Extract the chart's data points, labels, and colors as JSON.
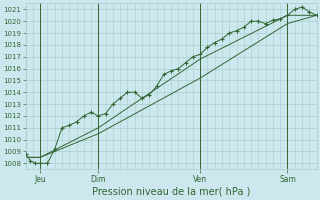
{
  "xlabel": "Pression niveau de la mer( hPa )",
  "ylim": [
    1007.5,
    1021.5
  ],
  "yticks": [
    1008,
    1009,
    1010,
    1011,
    1012,
    1013,
    1014,
    1015,
    1016,
    1017,
    1018,
    1019,
    1020,
    1021
  ],
  "bg_color": "#cce8ee",
  "grid_color": "#aacccc",
  "line_color": "#336633",
  "marker_color": "#336633",
  "tick_label_color": "#336633",
  "axis_label_color": "#336633",
  "vline_color": "#336633",
  "xlim": [
    0,
    120
  ],
  "xtick_labels": [
    "Jeu",
    "Dim",
    "Ven",
    "Sam"
  ],
  "xtick_positions": [
    6,
    30,
    72,
    108
  ],
  "vline_positions": [
    6,
    30,
    72,
    108
  ],
  "series1_x": [
    0,
    2,
    4,
    6,
    9,
    12,
    15,
    18,
    21,
    24,
    27,
    30,
    33,
    36,
    39,
    42,
    45,
    48,
    51,
    54,
    57,
    60,
    63,
    66,
    69,
    72,
    75,
    78,
    81,
    84,
    87,
    90,
    93,
    96,
    99,
    102,
    105,
    108,
    111,
    114,
    117,
    120
  ],
  "series1_y": [
    1008.8,
    1008.2,
    1008.0,
    1008.0,
    1008.0,
    1009.2,
    1011.0,
    1011.2,
    1011.5,
    1012.0,
    1012.3,
    1012.0,
    1012.2,
    1013.0,
    1013.5,
    1014.0,
    1014.0,
    1013.5,
    1013.8,
    1014.5,
    1015.5,
    1015.8,
    1016.0,
    1016.5,
    1017.0,
    1017.2,
    1017.8,
    1018.2,
    1018.5,
    1019.0,
    1019.2,
    1019.5,
    1020.0,
    1020.0,
    1019.8,
    1020.1,
    1020.2,
    1020.5,
    1021.0,
    1021.2,
    1020.8,
    1020.5
  ],
  "series2_x": [
    0,
    6,
    30,
    72,
    108,
    120
  ],
  "series2_y": [
    1008.5,
    1008.5,
    1010.5,
    1015.2,
    1019.8,
    1020.5
  ],
  "series3_x": [
    0,
    6,
    30,
    72,
    108,
    120
  ],
  "series3_y": [
    1008.5,
    1008.5,
    1011.0,
    1016.8,
    1020.5,
    1020.5
  ]
}
